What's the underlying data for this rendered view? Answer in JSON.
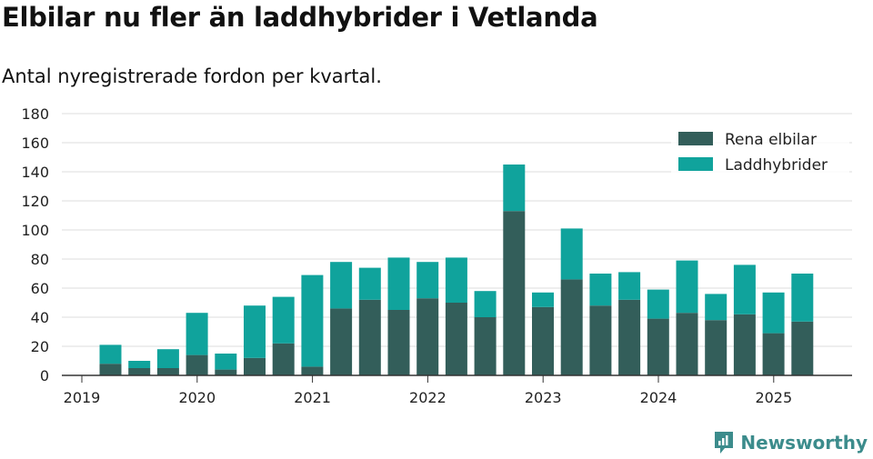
{
  "header": {
    "title": "Elbilar nu fler än laddhybrider i Vetlanda",
    "subtitle": "Antal nyregistrerade fordon per kvartal."
  },
  "brand": {
    "name": "Newsworthy",
    "color": "#3c8c8c",
    "icon": "newsworthy-logo-icon"
  },
  "colors": {
    "series1": "#335e5a",
    "series2": "#10a39c",
    "grid": "#dddddd",
    "axis": "#333333"
  },
  "chart_data": {
    "type": "bar",
    "stacked": true,
    "title": "Elbilar nu fler än laddhybrider i Vetlanda",
    "subtitle": "Antal nyregistrerade fordon per kvartal.",
    "xlabel": "",
    "ylabel": "",
    "ylim": [
      0,
      180
    ],
    "yticks": [
      0,
      20,
      40,
      60,
      80,
      100,
      120,
      140,
      160,
      180
    ],
    "xticks": [
      "2019",
      "2020",
      "2021",
      "2022",
      "2023",
      "2024",
      "2025"
    ],
    "categories": [
      "2019 Q2",
      "2019 Q3",
      "2019 Q4",
      "2020 Q1",
      "2020 Q2",
      "2020 Q3",
      "2020 Q4",
      "2021 Q1",
      "2021 Q2",
      "2021 Q3",
      "2021 Q4",
      "2022 Q1",
      "2022 Q2",
      "2022 Q3",
      "2022 Q4",
      "2023 Q1",
      "2023 Q2",
      "2023 Q3",
      "2023 Q4",
      "2024 Q1",
      "2024 Q2",
      "2024 Q3",
      "2024 Q4",
      "2025 Q1",
      "2025 Q2"
    ],
    "series": [
      {
        "name": "Rena elbilar",
        "values": [
          8,
          5,
          5,
          14,
          4,
          12,
          22,
          6,
          46,
          52,
          45,
          53,
          50,
          40,
          113,
          47,
          66,
          48,
          52,
          39,
          43,
          38,
          42,
          29,
          37
        ]
      },
      {
        "name": "Laddhybrider",
        "values": [
          13,
          5,
          13,
          29,
          11,
          36,
          32,
          63,
          32,
          22,
          36,
          25,
          31,
          18,
          32,
          10,
          35,
          22,
          19,
          20,
          36,
          18,
          34,
          28,
          33
        ]
      }
    ],
    "grid": true,
    "legend": "top-right"
  }
}
